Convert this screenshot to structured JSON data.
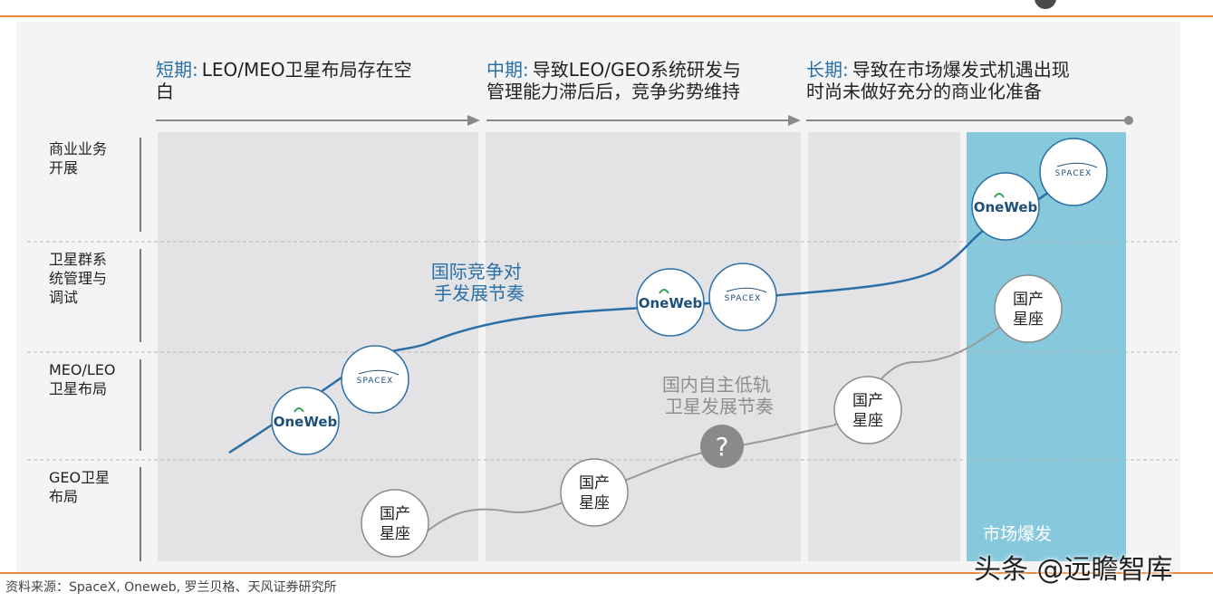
{
  "phases": [
    {
      "head": "短期",
      "sep": ":",
      "line1": "LEO/MEO卫星布局存在空",
      "line2": "白"
    },
    {
      "head": "中期",
      "sep": ":",
      "line1": "导致LEO/GEO系统研发与",
      "line2": "管理能力滞后后，竞争劣势维持"
    },
    {
      "head": "长期",
      "sep": ":",
      "line1": "导致在市场爆发式机遇出现",
      "line2": "时尚未做好充分的商业化准备"
    }
  ],
  "rows": [
    {
      "lines": [
        "商业业务",
        "开展"
      ]
    },
    {
      "lines": [
        "卫星群系",
        "统管理与",
        "调试"
      ]
    },
    {
      "lines": [
        "MEO/LEO",
        "卫星布局"
      ]
    },
    {
      "lines": [
        "GEO卫星",
        "布局"
      ]
    }
  ],
  "notes": {
    "international": [
      "国际竞争对",
      "手发展节奏"
    ],
    "domestic": [
      "国内自主低轨",
      "卫星发展节奏"
    ],
    "market": "市场爆发",
    "question": "?"
  },
  "badges": {
    "oneweb": "OneWeb",
    "spacex": "SPACEX",
    "domestic": [
      "国产",
      "星座"
    ]
  },
  "colors": {
    "accent": "#2a6fa6",
    "header": "#2a6fa6",
    "market": "#86c9dd",
    "rule": "#e8883a",
    "domestic_line": "#9a9a9a"
  },
  "source": "资料来源：SpaceX, Oneweb, 罗兰贝格、天风证券研究所",
  "watermark": "头条 @远瞻智库"
}
